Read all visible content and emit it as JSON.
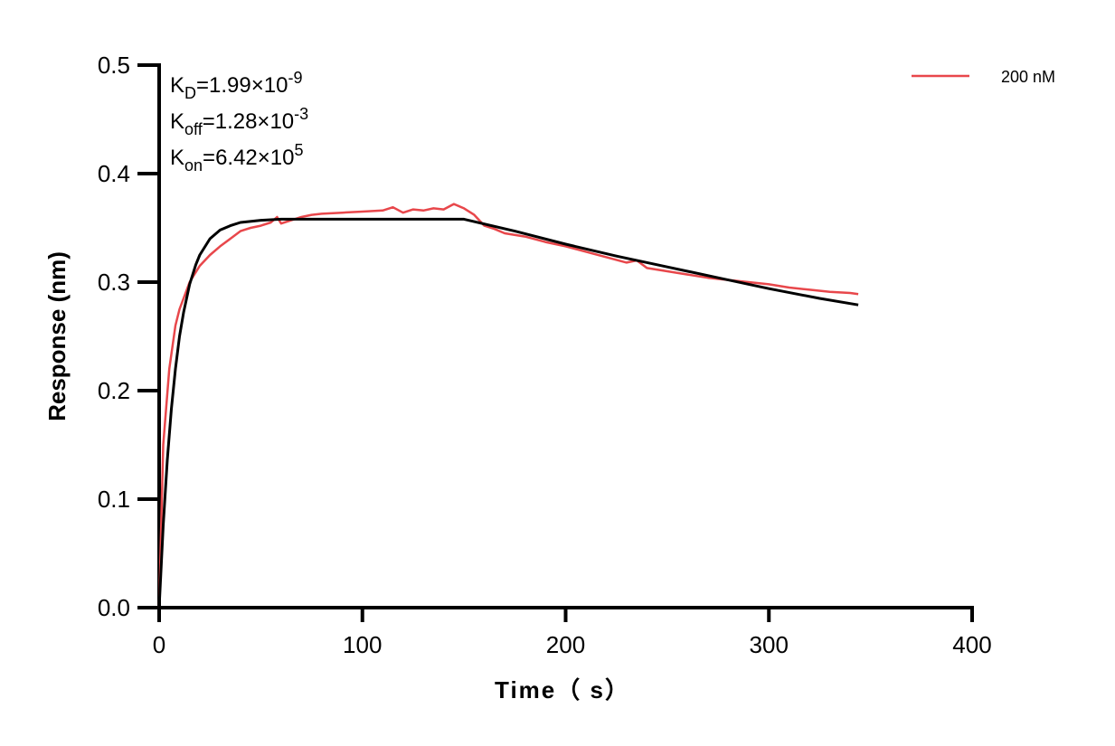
{
  "chart_data": {
    "type": "line",
    "title": "",
    "xlabel": "Time（ s）",
    "ylabel": "Response (nm)",
    "xlim": [
      0,
      400
    ],
    "ylim": [
      0,
      0.5
    ],
    "xticks": [
      0,
      100,
      200,
      300,
      400
    ],
    "yticks": [
      0.0,
      0.1,
      0.2,
      0.3,
      0.4,
      0.5
    ],
    "xtick_labels": [
      "0",
      "100",
      "200",
      "300",
      "400"
    ],
    "ytick_labels": [
      "0.0",
      "0.1",
      "0.2",
      "0.3",
      "0.4",
      "0.5"
    ],
    "grid": false,
    "legend_position": "top-right",
    "annotations": [
      {
        "base": "K",
        "sub": "D",
        "value": "=1.99×10",
        "sup": "-9"
      },
      {
        "base": "K",
        "sub": "off",
        "value": "=1.28×10",
        "sup": "-3"
      },
      {
        "base": "K",
        "sub": "on",
        "value": "=6.42×10",
        "sup": "5"
      }
    ],
    "series": [
      {
        "name": "200 nM",
        "color": "#e8474b",
        "x": [
          0,
          2,
          5,
          8,
          10,
          15,
          20,
          25,
          30,
          35,
          40,
          45,
          50,
          55,
          58,
          60,
          65,
          70,
          75,
          80,
          90,
          100,
          110,
          115,
          120,
          125,
          130,
          135,
          140,
          145,
          150,
          155,
          160,
          165,
          170,
          180,
          190,
          200,
          210,
          220,
          230,
          235,
          240,
          250,
          260,
          270,
          280,
          290,
          300,
          310,
          320,
          330,
          340,
          344
        ],
        "y": [
          0,
          0.15,
          0.22,
          0.26,
          0.275,
          0.3,
          0.315,
          0.325,
          0.333,
          0.34,
          0.347,
          0.35,
          0.352,
          0.355,
          0.36,
          0.354,
          0.357,
          0.36,
          0.362,
          0.363,
          0.364,
          0.365,
          0.366,
          0.369,
          0.364,
          0.367,
          0.366,
          0.368,
          0.367,
          0.372,
          0.368,
          0.362,
          0.352,
          0.349,
          0.345,
          0.342,
          0.337,
          0.333,
          0.328,
          0.323,
          0.318,
          0.32,
          0.313,
          0.31,
          0.307,
          0.304,
          0.302,
          0.3,
          0.298,
          0.295,
          0.293,
          0.291,
          0.29,
          0.289
        ]
      },
      {
        "color": "#000000",
        "x": [
          0,
          2,
          4,
          6,
          8,
          10,
          12,
          15,
          18,
          20,
          25,
          30,
          35,
          40,
          50,
          60,
          150,
          175,
          200,
          225,
          250,
          275,
          300,
          325,
          344
        ],
        "y": [
          0,
          0.076,
          0.136,
          0.183,
          0.22,
          0.25,
          0.272,
          0.298,
          0.316,
          0.325,
          0.34,
          0.348,
          0.352,
          0.355,
          0.357,
          0.358,
          0.358,
          0.347,
          0.335,
          0.324,
          0.314,
          0.304,
          0.294,
          0.285,
          0.279
        ]
      }
    ]
  }
}
